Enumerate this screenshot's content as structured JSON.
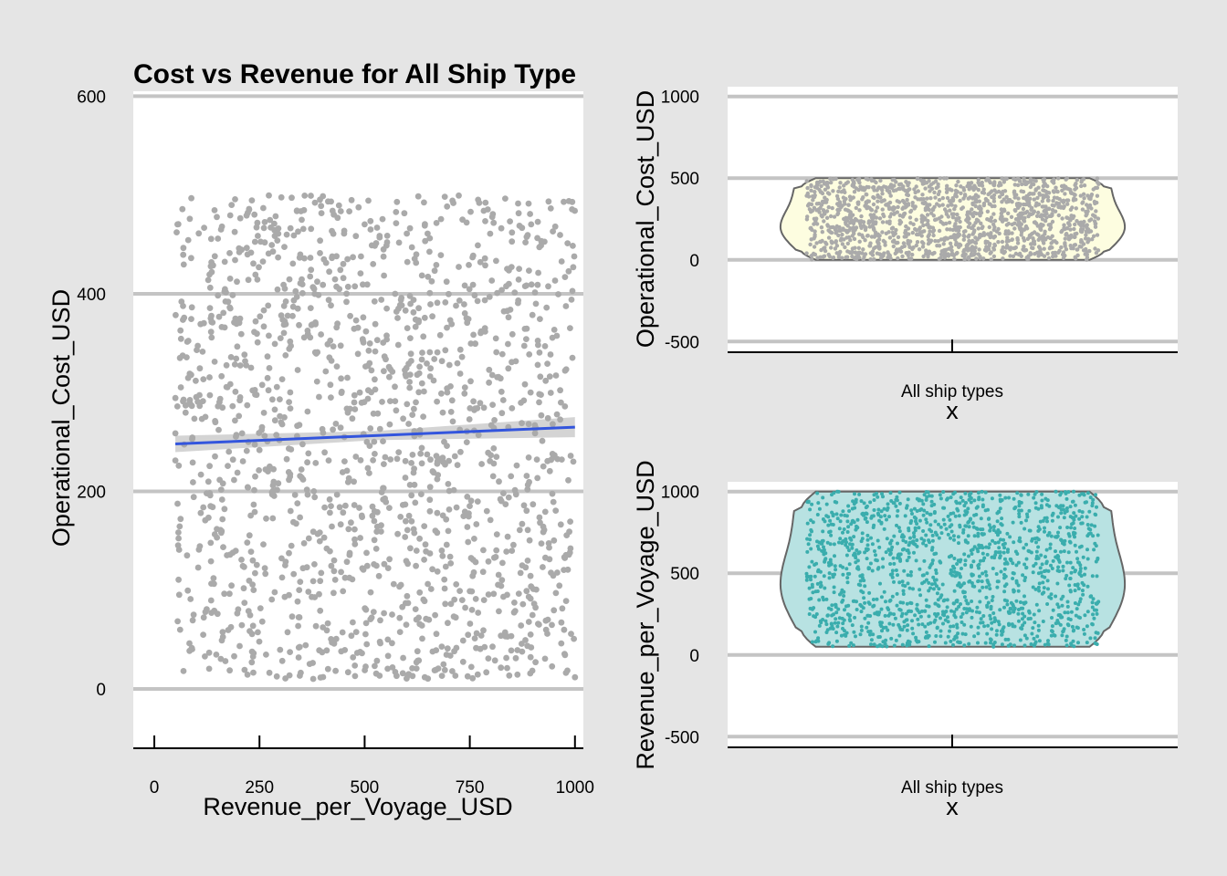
{
  "chart_data": [
    {
      "type": "scatter",
      "title": "Cost vs Revenue for All Ship Type",
      "xlabel": "Revenue_per_Voyage_USD",
      "ylabel": "Operational_Cost_USD",
      "xlim": [
        -50,
        1020
      ],
      "ylim": [
        -60,
        605
      ],
      "xticks": [
        0,
        250,
        500,
        750,
        1000
      ],
      "yticks": [
        0,
        200,
        400,
        600
      ],
      "x_range_of_points": [
        50,
        1000
      ],
      "y_range_of_points": [
        10,
        500
      ],
      "point_color": "#aaaaaa",
      "trend_line": {
        "x": [
          50,
          1000
        ],
        "y": [
          248,
          265
        ],
        "color": "#3355dd",
        "band_color": "#cccccc"
      },
      "grid": "horizontal"
    },
    {
      "type": "violin",
      "xlabel": "x",
      "ylabel": "Operational_Cost_USD",
      "category": "All ship types",
      "ylim": [
        -560,
        1060
      ],
      "yticks": [
        -500,
        0,
        500,
        1000
      ],
      "y_range": [
        0,
        500
      ],
      "fill": "#fdfde0",
      "point_color": "#aaaaaa",
      "grid": "horizontal"
    },
    {
      "type": "violin",
      "xlabel": "x",
      "ylabel": "Revenue_per_Voyage_USD",
      "category": "All ship types",
      "ylim": [
        -560,
        1060
      ],
      "yticks": [
        -500,
        0,
        500,
        1000
      ],
      "y_range": [
        50,
        1000
      ],
      "fill": "#b8e2e2",
      "point_color": "#3aadad",
      "grid": "horizontal"
    }
  ]
}
